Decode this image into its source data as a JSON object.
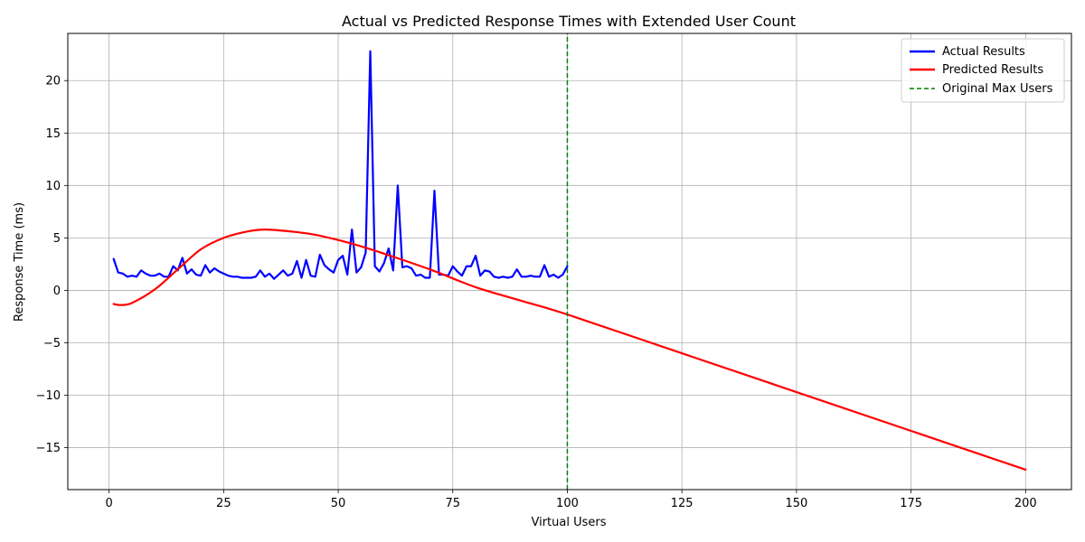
{
  "chart_data": {
    "type": "line",
    "title": "Actual vs Predicted Response Times with Extended User Count",
    "xlabel": "Virtual Users",
    "ylabel": "Response Time (ms)",
    "xlim": [
      -9,
      210
    ],
    "ylim": [
      -19,
      24.5
    ],
    "xticks": [
      0,
      25,
      50,
      75,
      100,
      125,
      150,
      175,
      200
    ],
    "yticks": [
      -15,
      -10,
      -5,
      0,
      5,
      10,
      15,
      20
    ],
    "ytick_labels": [
      "−15",
      "−10",
      "−5",
      "0",
      "5",
      "10",
      "15",
      "20"
    ],
    "grid": true,
    "legend_position": "top-right",
    "series": [
      {
        "name": "Actual Results",
        "color": "#0000ff",
        "style": "solid",
        "x_start": 1,
        "x_step": 1,
        "values": [
          3.0,
          1.7,
          1.6,
          1.3,
          1.4,
          1.3,
          1.9,
          1.6,
          1.4,
          1.4,
          1.6,
          1.3,
          1.3,
          2.3,
          1.9,
          3.1,
          1.6,
          2.0,
          1.5,
          1.4,
          2.4,
          1.7,
          2.1,
          1.8,
          1.6,
          1.4,
          1.3,
          1.3,
          1.2,
          1.2,
          1.2,
          1.3,
          1.9,
          1.3,
          1.6,
          1.1,
          1.5,
          1.9,
          1.4,
          1.6,
          2.8,
          1.2,
          2.9,
          1.4,
          1.3,
          3.4,
          2.4,
          2.0,
          1.7,
          2.9,
          3.3,
          1.5,
          5.8,
          1.7,
          2.2,
          3.6,
          22.8,
          2.3,
          1.8,
          2.6,
          4.0,
          1.9,
          10.0,
          2.2,
          2.3,
          2.1,
          1.4,
          1.5,
          1.2,
          1.2,
          9.5,
          1.5,
          1.5,
          1.4,
          2.3,
          1.8,
          1.4,
          2.3,
          2.3,
          3.3,
          1.4,
          1.9,
          1.8,
          1.3,
          1.2,
          1.3,
          1.2,
          1.3,
          2.0,
          1.3,
          1.3,
          1.4,
          1.3,
          1.3,
          2.4,
          1.3,
          1.5,
          1.2,
          1.5,
          2.3
        ]
      },
      {
        "name": "Predicted Results",
        "color": "#ff0000",
        "style": "solid",
        "x": [
          1,
          2.5,
          5,
          10,
          15,
          20,
          25,
          30,
          34,
          40,
          45,
          50,
          55,
          60,
          70,
          80,
          90,
          100,
          125,
          150,
          175,
          200
        ],
        "values": [
          -1.3,
          -1.4,
          -1.2,
          0.1,
          2.0,
          3.9,
          5.0,
          5.6,
          5.8,
          5.6,
          5.3,
          4.8,
          4.2,
          3.5,
          2.0,
          0.3,
          -1.0,
          -2.3,
          -6.0,
          -9.7,
          -13.4,
          -17.1
        ]
      },
      {
        "name": "Original Max Users",
        "color": "#008000",
        "style": "dashed",
        "x": [
          100,
          100
        ],
        "values": [
          -19,
          24.5
        ]
      }
    ]
  }
}
